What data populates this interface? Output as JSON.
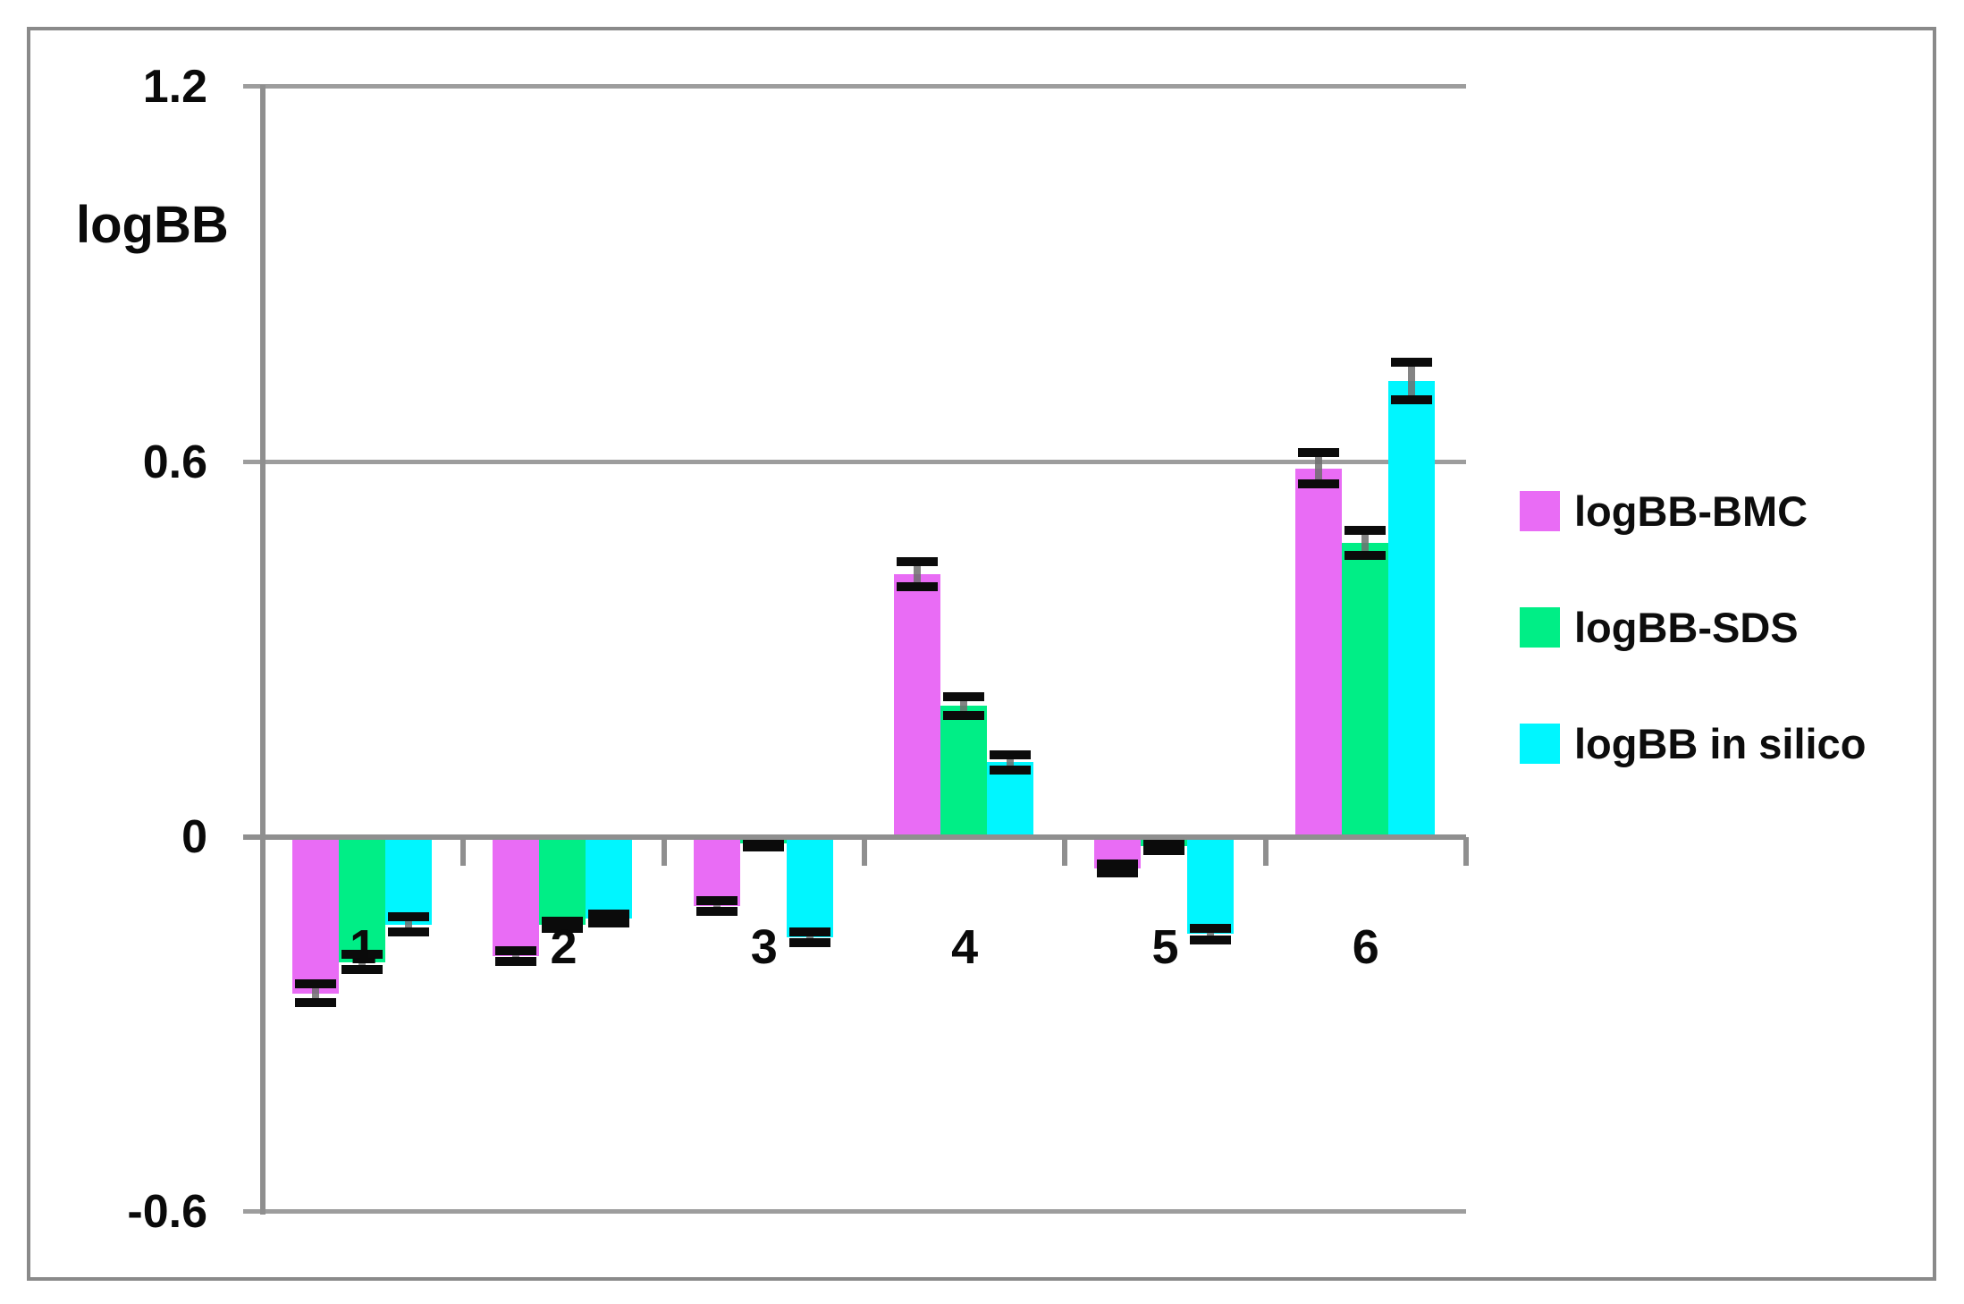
{
  "chart_data": {
    "type": "bar",
    "title": "",
    "ylabel": "logBB",
    "xlabel": "",
    "ylim": [
      -0.6,
      1.2
    ],
    "grid": true,
    "legend_position": "right",
    "y_axis": {
      "ticks": [
        {
          "label": "1.2",
          "value": 1.2
        },
        {
          "label": "0.6",
          "value": 0.6
        },
        {
          "label": "0",
          "value": 0
        },
        {
          "label": "-0.6",
          "value": -0.6
        }
      ]
    },
    "categories": [
      "1",
      "2",
      "3",
      "4",
      "5",
      "6"
    ],
    "series": [
      {
        "name": "logBB-BMC",
        "color": "#e96cf5",
        "values": [
          -0.25,
          -0.19,
          -0.11,
          0.42,
          -0.05,
          0.59
        ],
        "errors": [
          0.015,
          0.009,
          0.009,
          0.02,
          0.007,
          0.025
        ]
      },
      {
        "name": "logBB-SDS",
        "color": "#00ee86",
        "values": [
          -0.2,
          -0.14,
          -0.01,
          0.21,
          -0.015,
          0.47
        ],
        "errors": [
          0.012,
          0.006,
          0.006,
          0.015,
          0.006,
          0.02
        ]
      },
      {
        "name": "logBB in silico",
        "color": "#00f6ff",
        "values": [
          -0.14,
          -0.13,
          -0.16,
          0.12,
          -0.155,
          0.73
        ],
        "errors": [
          0.012,
          0.007,
          0.009,
          0.012,
          0.009,
          0.03
        ]
      }
    ]
  }
}
